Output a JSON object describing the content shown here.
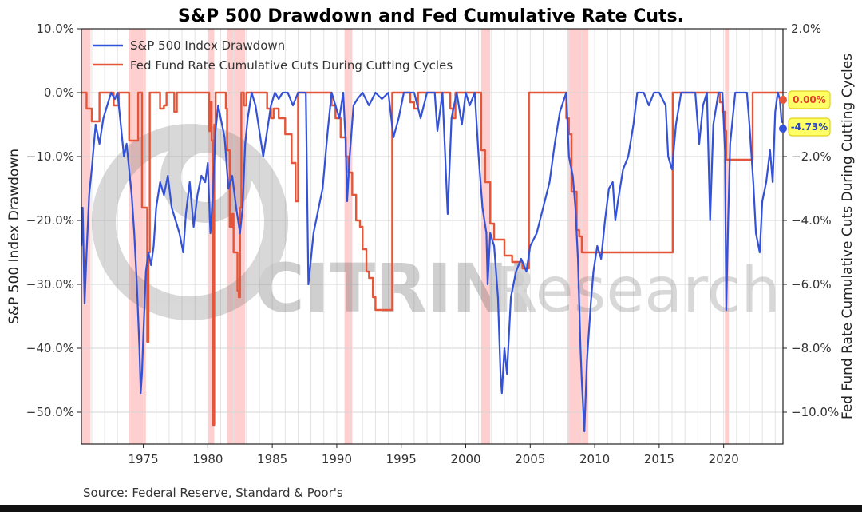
{
  "chart_data": {
    "type": "line",
    "title": "S&P 500 Drawdown and Fed Cumulative Rate Cuts.",
    "source": "Source: Federal Reserve, Standard & Poor's",
    "xlim": [
      1970.2,
      2024.6
    ],
    "x_ticks": [
      1975,
      1980,
      1985,
      1990,
      1995,
      2000,
      2005,
      2010,
      2015,
      2020
    ],
    "y_left": {
      "label": "S&P 500 Index Drawdown",
      "lim": [
        -55,
        10
      ],
      "ticks": [
        10,
        0,
        -10,
        -20,
        -30,
        -40,
        -50
      ],
      "tick_labels": [
        "10.0%",
        "0.0%",
        "−10.0%",
        "−20.0%",
        "−30.0%",
        "−40.0%",
        "−50.0%"
      ]
    },
    "y_right": {
      "label": "Fed Fund Rate Cumulative Cuts During Cutting Cycles",
      "lim": [
        -11,
        2
      ],
      "ticks": [
        2,
        0,
        -2,
        -4,
        -6,
        -8,
        -10
      ],
      "tick_labels": [
        "2.0%",
        "",
        "−2.0%",
        "−4.0%",
        "−6.0%",
        "−8.0%",
        "−10.0%"
      ]
    },
    "legend_position": "top-left",
    "grid": true,
    "watermark": {
      "bold": "CITRINI",
      "light": "Research"
    },
    "recessions": [
      [
        1970.0,
        1970.9
      ],
      [
        1973.9,
        1975.2
      ],
      [
        1980.0,
        1980.5
      ],
      [
        1981.5,
        1982.9
      ],
      [
        1990.6,
        1991.2
      ],
      [
        2001.2,
        2001.9
      ],
      [
        2007.9,
        2009.5
      ],
      [
        2020.1,
        2020.4
      ]
    ],
    "series": [
      {
        "name": "S&P 500 Index Drawdown",
        "axis": "left",
        "color": "#3352d8",
        "end_label": "-4.73%",
        "points": [
          [
            1970.2,
            -24
          ],
          [
            1970.3,
            -18
          ],
          [
            1970.45,
            -33
          ],
          [
            1970.6,
            -25
          ],
          [
            1970.8,
            -16
          ],
          [
            1971.0,
            -12
          ],
          [
            1971.3,
            -5
          ],
          [
            1971.6,
            -8
          ],
          [
            1971.9,
            -4
          ],
          [
            1972.2,
            -2
          ],
          [
            1972.5,
            0
          ],
          [
            1972.8,
            -1
          ],
          [
            1973.0,
            0
          ],
          [
            1973.2,
            -4
          ],
          [
            1973.5,
            -10
          ],
          [
            1973.7,
            -8
          ],
          [
            1973.9,
            -12
          ],
          [
            1974.1,
            -16
          ],
          [
            1974.3,
            -22
          ],
          [
            1974.5,
            -30
          ],
          [
            1974.7,
            -40
          ],
          [
            1974.8,
            -47
          ],
          [
            1974.9,
            -44
          ],
          [
            1975.0,
            -38
          ],
          [
            1975.2,
            -28
          ],
          [
            1975.4,
            -25
          ],
          [
            1975.6,
            -27
          ],
          [
            1975.8,
            -24
          ],
          [
            1976.0,
            -18
          ],
          [
            1976.3,
            -14
          ],
          [
            1976.6,
            -16
          ],
          [
            1976.9,
            -13
          ],
          [
            1977.2,
            -18
          ],
          [
            1977.5,
            -20
          ],
          [
            1977.8,
            -22
          ],
          [
            1978.1,
            -25
          ],
          [
            1978.3,
            -19
          ],
          [
            1978.6,
            -14
          ],
          [
            1978.9,
            -21
          ],
          [
            1979.2,
            -16
          ],
          [
            1979.5,
            -13
          ],
          [
            1979.8,
            -14
          ],
          [
            1980.0,
            -11
          ],
          [
            1980.2,
            -22
          ],
          [
            1980.4,
            -16
          ],
          [
            1980.6,
            -6
          ],
          [
            1980.8,
            -2
          ],
          [
            1981.0,
            -4
          ],
          [
            1981.3,
            -7
          ],
          [
            1981.6,
            -15
          ],
          [
            1981.9,
            -13
          ],
          [
            1982.2,
            -18
          ],
          [
            1982.5,
            -22
          ],
          [
            1982.7,
            -18
          ],
          [
            1982.9,
            -8
          ],
          [
            1983.1,
            -4
          ],
          [
            1983.4,
            0
          ],
          [
            1983.7,
            -2
          ],
          [
            1984.0,
            -6
          ],
          [
            1984.3,
            -10
          ],
          [
            1984.6,
            -6
          ],
          [
            1984.9,
            -2
          ],
          [
            1985.2,
            0
          ],
          [
            1985.5,
            -1
          ],
          [
            1985.8,
            0
          ],
          [
            1986.2,
            0
          ],
          [
            1986.6,
            -2
          ],
          [
            1987.0,
            0
          ],
          [
            1987.6,
            0
          ],
          [
            1987.8,
            -30
          ],
          [
            1987.95,
            -27
          ],
          [
            1988.2,
            -22
          ],
          [
            1988.6,
            -18
          ],
          [
            1988.9,
            -15
          ],
          [
            1989.3,
            -6
          ],
          [
            1989.6,
            0
          ],
          [
            1989.9,
            -2
          ],
          [
            1990.2,
            -4
          ],
          [
            1990.5,
            0
          ],
          [
            1990.7,
            -8
          ],
          [
            1990.8,
            -17
          ],
          [
            1991.0,
            -10
          ],
          [
            1991.3,
            -2
          ],
          [
            1991.6,
            -1
          ],
          [
            1992.0,
            0
          ],
          [
            1992.5,
            -2
          ],
          [
            1993.0,
            0
          ],
          [
            1993.5,
            -1
          ],
          [
            1994.0,
            0
          ],
          [
            1994.4,
            -7
          ],
          [
            1994.8,
            -4
          ],
          [
            1995.2,
            0
          ],
          [
            1996.0,
            0
          ],
          [
            1996.5,
            -4
          ],
          [
            1997.0,
            0
          ],
          [
            1997.6,
            0
          ],
          [
            1997.8,
            -6
          ],
          [
            1998.2,
            0
          ],
          [
            1998.6,
            -19
          ],
          [
            1998.9,
            -4
          ],
          [
            1999.3,
            0
          ],
          [
            1999.7,
            -5
          ],
          [
            2000.0,
            0
          ],
          [
            2000.3,
            -2
          ],
          [
            2000.7,
            0
          ],
          [
            2001.0,
            -10
          ],
          [
            2001.3,
            -18
          ],
          [
            2001.6,
            -22
          ],
          [
            2001.7,
            -30
          ],
          [
            2001.9,
            -22
          ],
          [
            2002.2,
            -24
          ],
          [
            2002.5,
            -32
          ],
          [
            2002.7,
            -44
          ],
          [
            2002.8,
            -47
          ],
          [
            2003.0,
            -40
          ],
          [
            2003.2,
            -44
          ],
          [
            2003.5,
            -32
          ],
          [
            2003.9,
            -28
          ],
          [
            2004.3,
            -26
          ],
          [
            2004.7,
            -28
          ],
          [
            2005.0,
            -24
          ],
          [
            2005.5,
            -22
          ],
          [
            2006.0,
            -18
          ],
          [
            2006.5,
            -14
          ],
          [
            2006.9,
            -8
          ],
          [
            2007.3,
            -3
          ],
          [
            2007.8,
            0
          ],
          [
            2008.0,
            -10
          ],
          [
            2008.3,
            -13
          ],
          [
            2008.5,
            -18
          ],
          [
            2008.7,
            -26
          ],
          [
            2008.9,
            -40
          ],
          [
            2009.0,
            -45
          ],
          [
            2009.2,
            -53
          ],
          [
            2009.4,
            -42
          ],
          [
            2009.7,
            -33
          ],
          [
            2009.9,
            -28
          ],
          [
            2010.2,
            -24
          ],
          [
            2010.5,
            -26
          ],
          [
            2010.8,
            -20
          ],
          [
            2011.1,
            -15
          ],
          [
            2011.4,
            -14
          ],
          [
            2011.6,
            -20
          ],
          [
            2011.8,
            -17
          ],
          [
            2012.2,
            -12
          ],
          [
            2012.6,
            -10
          ],
          [
            2013.0,
            -5
          ],
          [
            2013.3,
            0
          ],
          [
            2013.8,
            0
          ],
          [
            2014.2,
            -2
          ],
          [
            2014.6,
            0
          ],
          [
            2015.0,
            0
          ],
          [
            2015.5,
            -2
          ],
          [
            2015.7,
            -10
          ],
          [
            2016.0,
            -12
          ],
          [
            2016.3,
            -5
          ],
          [
            2016.7,
            0
          ],
          [
            2017.2,
            0
          ],
          [
            2017.8,
            0
          ],
          [
            2018.1,
            -8
          ],
          [
            2018.4,
            -2
          ],
          [
            2018.7,
            0
          ],
          [
            2018.95,
            -20
          ],
          [
            2019.2,
            -5
          ],
          [
            2019.6,
            0
          ],
          [
            2019.9,
            0
          ],
          [
            2020.1,
            -9
          ],
          [
            2020.2,
            -34
          ],
          [
            2020.35,
            -20
          ],
          [
            2020.5,
            -8
          ],
          [
            2020.7,
            -4
          ],
          [
            2020.9,
            0
          ],
          [
            2021.3,
            0
          ],
          [
            2021.8,
            0
          ],
          [
            2022.0,
            -5
          ],
          [
            2022.3,
            -14
          ],
          [
            2022.5,
            -22
          ],
          [
            2022.8,
            -25
          ],
          [
            2023.0,
            -17
          ],
          [
            2023.3,
            -14
          ],
          [
            2023.6,
            -9
          ],
          [
            2023.8,
            -14
          ],
          [
            2024.0,
            -3
          ],
          [
            2024.2,
            0
          ],
          [
            2024.35,
            -1
          ],
          [
            2024.5,
            -4.73
          ]
        ]
      },
      {
        "name": "Fed Fund Rate Cumulative Cuts During Cutting Cycles",
        "axis": "right",
        "color": "#e4563a",
        "end_label": "0.00%",
        "points": [
          [
            1970.2,
            0
          ],
          [
            1970.5,
            0
          ],
          [
            1970.6,
            -0.5
          ],
          [
            1970.9,
            -0.5
          ],
          [
            1971.0,
            -0.9
          ],
          [
            1971.4,
            -0.9
          ],
          [
            1971.6,
            0
          ],
          [
            1972.5,
            0
          ],
          [
            1972.7,
            -0.4
          ],
          [
            1973.0,
            -0.4
          ],
          [
            1973.1,
            0
          ],
          [
            1973.7,
            0
          ],
          [
            1973.9,
            -1.5
          ],
          [
            1974.5,
            -1.5
          ],
          [
            1974.6,
            0
          ],
          [
            1974.8,
            0
          ],
          [
            1974.9,
            -3.6
          ],
          [
            1975.2,
            -3.6
          ],
          [
            1975.3,
            -7.8
          ],
          [
            1975.4,
            -5
          ],
          [
            1975.5,
            0
          ],
          [
            1976.1,
            0
          ],
          [
            1976.3,
            -0.5
          ],
          [
            1976.6,
            -0.4
          ],
          [
            1976.8,
            0
          ],
          [
            1977.2,
            0
          ],
          [
            1977.4,
            -0.6
          ],
          [
            1977.6,
            0
          ],
          [
            1980.0,
            0
          ],
          [
            1980.1,
            -1.2
          ],
          [
            1980.2,
            -0.3
          ],
          [
            1980.3,
            -1.5
          ],
          [
            1980.4,
            -10.4
          ],
          [
            1980.5,
            -1
          ],
          [
            1980.6,
            0
          ],
          [
            1981.3,
            0
          ],
          [
            1981.4,
            -0.5
          ],
          [
            1981.5,
            -1.8
          ],
          [
            1981.7,
            -4.2
          ],
          [
            1981.9,
            -3.8
          ],
          [
            1982.0,
            -5
          ],
          [
            1982.3,
            -6.2
          ],
          [
            1982.4,
            -6.4
          ],
          [
            1982.5,
            -3.6
          ],
          [
            1982.6,
            0
          ],
          [
            1982.8,
            -0.4
          ],
          [
            1983.0,
            0
          ],
          [
            1984.2,
            0
          ],
          [
            1984.6,
            -0.5
          ],
          [
            1984.9,
            -0.8
          ],
          [
            1985.1,
            -0.5
          ],
          [
            1985.5,
            -0.8
          ],
          [
            1986.0,
            -1.3
          ],
          [
            1986.5,
            -2.2
          ],
          [
            1986.8,
            -3.4
          ],
          [
            1987.0,
            0
          ],
          [
            1989.5,
            0
          ],
          [
            1989.6,
            -0.4
          ],
          [
            1989.9,
            -0.8
          ],
          [
            1990.3,
            -1.4
          ],
          [
            1990.7,
            -2
          ],
          [
            1990.9,
            -2.5
          ],
          [
            1991.2,
            -3.2
          ],
          [
            1991.5,
            -4
          ],
          [
            1991.8,
            -4.2
          ],
          [
            1992.0,
            -4.9
          ],
          [
            1992.3,
            -5.6
          ],
          [
            1992.5,
            -5.8
          ],
          [
            1992.8,
            -6.4
          ],
          [
            1993.0,
            -6.8
          ],
          [
            1994.2,
            -6.8
          ],
          [
            1994.3,
            0
          ],
          [
            1995.5,
            0
          ],
          [
            1995.7,
            -0.3
          ],
          [
            1996.0,
            -0.5
          ],
          [
            1996.3,
            0
          ],
          [
            1998.6,
            0
          ],
          [
            1998.8,
            -0.5
          ],
          [
            1999.0,
            -0.8
          ],
          [
            1999.2,
            0
          ],
          [
            2001.0,
            0
          ],
          [
            2001.2,
            -1.8
          ],
          [
            2001.5,
            -2.8
          ],
          [
            2001.9,
            -4.1
          ],
          [
            2002.2,
            -4.6
          ],
          [
            2002.8,
            -4.6
          ],
          [
            2003.0,
            -5.1
          ],
          [
            2003.6,
            -5.3
          ],
          [
            2004.4,
            -5.5
          ],
          [
            2004.8,
            -5.5
          ],
          [
            2004.9,
            0
          ],
          [
            2007.6,
            0
          ],
          [
            2007.8,
            -0.8
          ],
          [
            2008.0,
            -1.3
          ],
          [
            2008.2,
            -3.1
          ],
          [
            2008.6,
            -4.3
          ],
          [
            2008.8,
            -4.5
          ],
          [
            2009.0,
            -5
          ],
          [
            2016.0,
            -5
          ],
          [
            2016.05,
            0
          ],
          [
            2019.5,
            0
          ],
          [
            2019.7,
            -0.3
          ],
          [
            2019.9,
            -0.6
          ],
          [
            2020.1,
            -1.2
          ],
          [
            2020.2,
            -2.1
          ],
          [
            2022.2,
            -2.1
          ],
          [
            2022.25,
            0
          ],
          [
            2024.6,
            0
          ]
        ]
      }
    ]
  }
}
